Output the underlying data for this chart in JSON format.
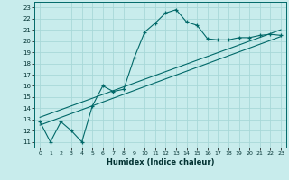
{
  "xlabel": "Humidex (Indice chaleur)",
  "ylabel": "",
  "bg_color": "#c8ecec",
  "grid_color": "#a8d8d8",
  "line_color": "#006868",
  "xlim": [
    -0.5,
    23.5
  ],
  "ylim": [
    10.5,
    23.5
  ],
  "xticks": [
    0,
    1,
    2,
    3,
    4,
    5,
    6,
    7,
    8,
    9,
    10,
    11,
    12,
    13,
    14,
    15,
    16,
    17,
    18,
    19,
    20,
    21,
    22,
    23
  ],
  "yticks": [
    11,
    12,
    13,
    14,
    15,
    16,
    17,
    18,
    19,
    20,
    21,
    22,
    23
  ],
  "series": {
    "main": {
      "x": [
        0,
        1,
        2,
        3,
        4,
        5,
        6,
        7,
        8,
        9,
        10,
        11,
        12,
        13,
        14,
        15,
        16,
        17,
        18,
        19,
        20,
        21,
        22,
        23
      ],
      "y": [
        12.8,
        11.0,
        12.8,
        12.0,
        11.0,
        14.2,
        16.0,
        15.5,
        15.7,
        18.5,
        20.8,
        21.6,
        22.5,
        22.8,
        21.7,
        21.4,
        20.2,
        20.1,
        20.1,
        20.3,
        20.3,
        20.5,
        20.6,
        20.5
      ]
    },
    "line1": {
      "x": [
        0,
        23
      ],
      "y": [
        12.5,
        20.4
      ]
    },
    "line2": {
      "x": [
        0,
        23
      ],
      "y": [
        13.2,
        21.0
      ]
    }
  }
}
